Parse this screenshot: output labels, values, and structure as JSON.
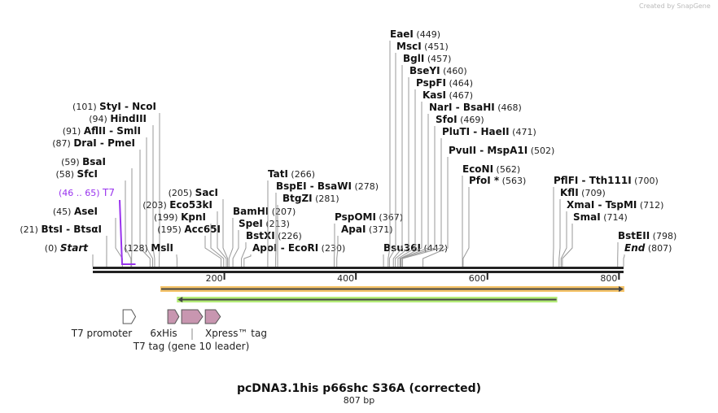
{
  "credit": "Created by SnapGene",
  "title": "pcDNA3.1his p66shc S36A (corrected)",
  "length_label": "807 bp",
  "length_bp": 807,
  "axis_ticks": [
    "200",
    "400",
    "600",
    "800"
  ],
  "sites": [
    {
      "name": "Start",
      "pos": 0,
      "italic": true
    },
    {
      "name": "BtsI  - BtsαI",
      "pos": 21
    },
    {
      "name": "AseI",
      "pos": 45
    },
    {
      "name": "SfcI",
      "pos": 58
    },
    {
      "name": "BsaI",
      "pos": 59
    },
    {
      "name": "DraI  - PmeI",
      "pos": 87
    },
    {
      "name": "AflII  - SmlI",
      "pos": 91
    },
    {
      "name": "HindIII",
      "pos": 94
    },
    {
      "name": "StyI  - NcoI",
      "pos": 101
    },
    {
      "name": "MslI",
      "pos": 128
    },
    {
      "name": "Acc65I",
      "pos": 195
    },
    {
      "name": "KpnI",
      "pos": 199
    },
    {
      "name": "Eco53kI",
      "pos": 203
    },
    {
      "name": "SacI",
      "pos": 205
    },
    {
      "name": "BamHI",
      "pos": 207
    },
    {
      "name": "SpeI",
      "pos": 213
    },
    {
      "name": "BstXI",
      "pos": 226
    },
    {
      "name": "ApoI  - EcoRI",
      "pos": 230
    },
    {
      "name": "TatI",
      "pos": 266
    },
    {
      "name": "BspEI  - BsaWI",
      "pos": 278
    },
    {
      "name": "BtgZI",
      "pos": 281
    },
    {
      "name": "PspOMI",
      "pos": 367
    },
    {
      "name": "ApaI",
      "pos": 371
    },
    {
      "name": "Bsu36I",
      "pos": 442
    },
    {
      "name": "EaeI",
      "pos": 449
    },
    {
      "name": "MscI",
      "pos": 451
    },
    {
      "name": "BglI",
      "pos": 457
    },
    {
      "name": "BseYI",
      "pos": 460
    },
    {
      "name": "PspFI",
      "pos": 464
    },
    {
      "name": "KasI",
      "pos": 467
    },
    {
      "name": "NarI  - BsaHI",
      "pos": 468
    },
    {
      "name": "SfoI",
      "pos": 469
    },
    {
      "name": "PluTI  - HaeII",
      "pos": 471
    },
    {
      "name": "PvuII  - MspA1I",
      "pos": 502
    },
    {
      "name": "EcoNI",
      "pos": 562
    },
    {
      "name": "PfoI *",
      "pos": 563
    },
    {
      "name": "PflFI  - Tth111I",
      "pos": 700
    },
    {
      "name": "KflI",
      "pos": 709
    },
    {
      "name": "XmaI  - TspMI",
      "pos": 712
    },
    {
      "name": "SmaI",
      "pos": 714
    },
    {
      "name": "BstEII",
      "pos": 798
    },
    {
      "name": "End",
      "pos": 807,
      "italic": true
    }
  ],
  "primer": {
    "name": "T7",
    "range": "(46 .. 65)",
    "start": 46,
    "end": 65,
    "color": "#9933ee"
  },
  "features": [
    {
      "name": "T7 promoter",
      "start": 46,
      "end": 65,
      "color": "#ffffff"
    },
    {
      "name": "6xHis",
      "start": 114,
      "end": 131,
      "color": "#c896b0"
    },
    {
      "name": "T7 tag (gene 10 leader)",
      "start": 135,
      "end": 167,
      "color": "#c896b0"
    },
    {
      "name": "Xpress™ tag",
      "start": 171,
      "end": 194,
      "color": "#c896b0"
    }
  ],
  "orf_forward": {
    "start": 104,
    "end": 807,
    "color": "#f5c46a"
  },
  "orf_reverse": {
    "start": 129,
    "end": 705,
    "color": "#b4ec78"
  }
}
